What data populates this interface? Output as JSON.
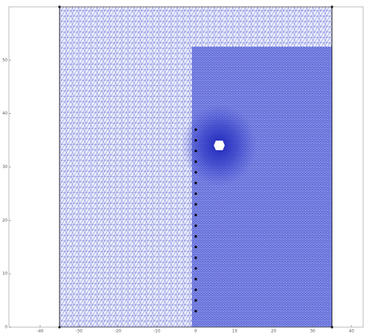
{
  "chart_data": {
    "type": "mesh",
    "xlim": [
      -48,
      43
    ],
    "ylim": [
      0,
      60
    ],
    "xticks": [
      -40,
      -30,
      -20,
      -10,
      0,
      10,
      20,
      30,
      40
    ],
    "yticks": [
      0,
      10,
      20,
      30,
      40,
      50
    ],
    "grid": false,
    "mesh_color": "#4a55d0",
    "point_color": "#000000",
    "points": {
      "x": [
        -35,
        35,
        -35,
        35,
        0,
        0,
        0,
        0,
        0,
        0,
        0,
        0,
        0,
        0,
        0,
        0,
        0,
        0,
        0,
        0,
        0,
        0
      ],
      "y": [
        0,
        0,
        60,
        60,
        3,
        5,
        7,
        9,
        11,
        13,
        15,
        17,
        19,
        21,
        23,
        25,
        27,
        29,
        31,
        33,
        35,
        37
      ]
    }
  }
}
